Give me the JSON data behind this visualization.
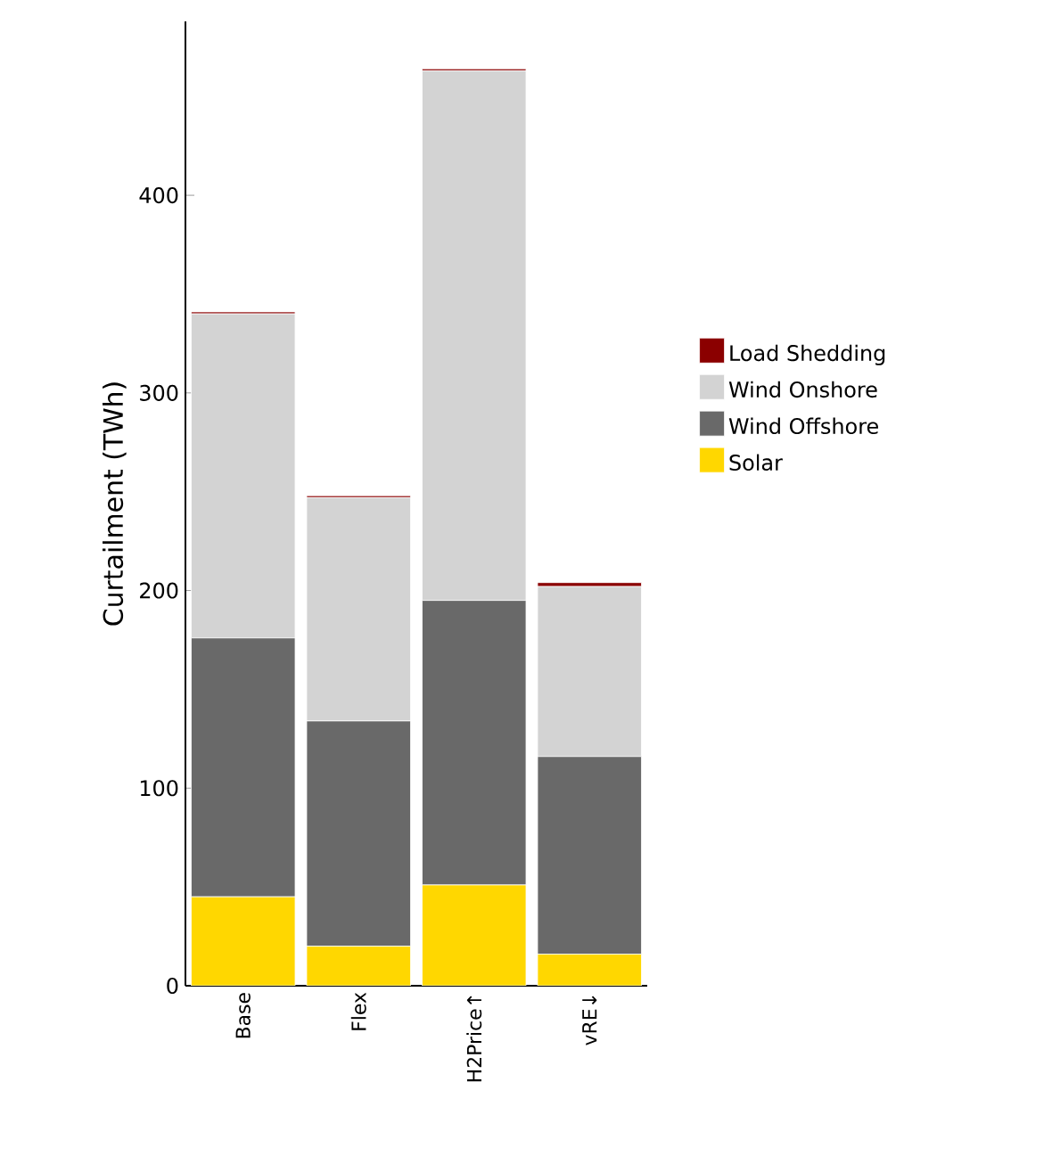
{
  "chart_data": {
    "type": "bar",
    "stacked": true,
    "ylabel": "Curtailment (TWh)",
    "categories": [
      "Base",
      "Flex",
      "H2Price↑",
      "vRE↓"
    ],
    "series": [
      {
        "name": "Solar",
        "color": "#ffd700",
        "values": [
          45,
          20,
          51,
          16
        ]
      },
      {
        "name": "Wind Offshore",
        "color": "#696969",
        "values": [
          131,
          114,
          144,
          100
        ]
      },
      {
        "name": "Wind Onshore",
        "color": "#d3d3d3",
        "values": [
          164,
          113,
          268,
          86
        ]
      },
      {
        "name": "Load Shedding",
        "color": "#8b0000",
        "values": [
          1,
          1,
          1,
          2
        ]
      }
    ],
    "ylim": [
      0,
      488
    ],
    "yticks": [
      0,
      100,
      200,
      300,
      400
    ],
    "grid": false,
    "legend": "right"
  }
}
